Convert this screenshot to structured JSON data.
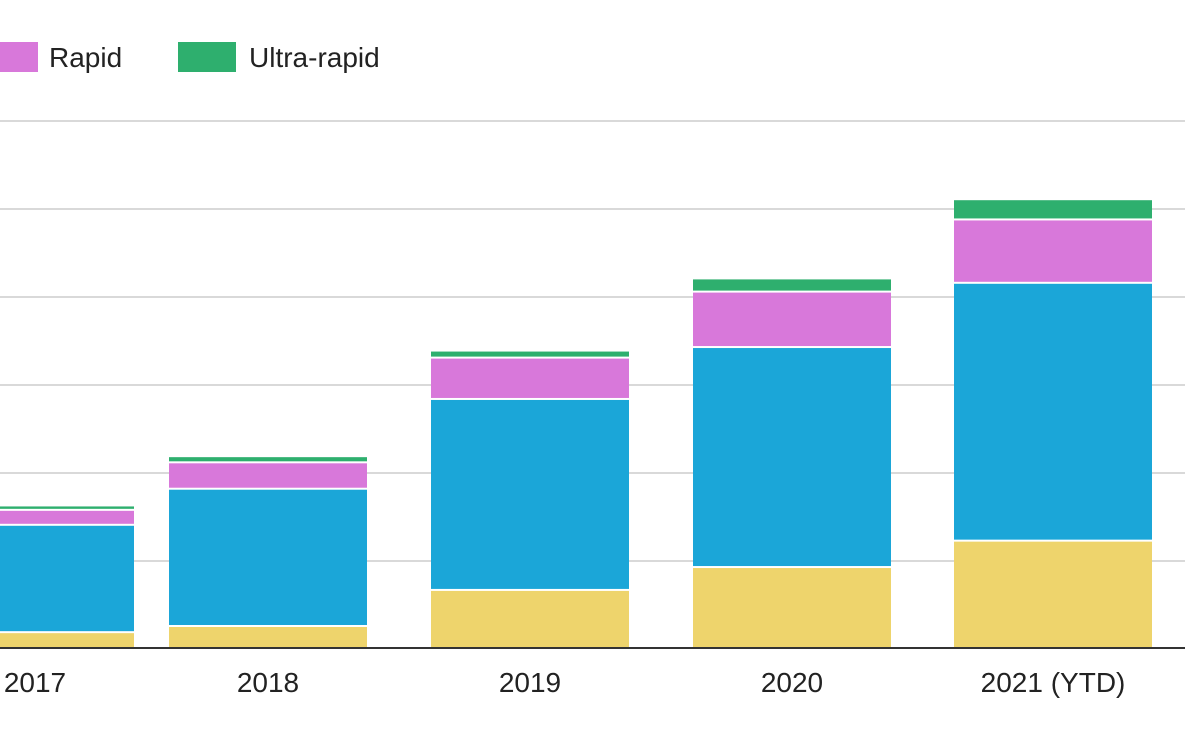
{
  "chart_data": {
    "type": "bar",
    "stacked": true,
    "categories": [
      "2017",
      "2018",
      "2019",
      "2020",
      "2021 (YTD)"
    ],
    "series": [
      {
        "key": "s1",
        "values": [
          0.18,
          0.25,
          0.66,
          0.92,
          1.22
        ]
      },
      {
        "key": "s2",
        "values": [
          1.22,
          1.56,
          2.17,
          2.5,
          2.93
        ]
      },
      {
        "key": "Rapid",
        "name": "Rapid",
        "values": [
          0.17,
          0.3,
          0.47,
          0.63,
          0.72
        ]
      },
      {
        "key": "Ultra-rapid",
        "name": "Ultra-rapid",
        "values": [
          0.05,
          0.07,
          0.08,
          0.15,
          0.23
        ]
      }
    ],
    "ylim": [
      0,
      6
    ],
    "grid": true,
    "legend_position": "top-left",
    "colors": {
      "s1": "#eed46c",
      "s2": "#1ba6d8",
      "Rapid": "#d878da",
      "Ultra-rapid": "#2eaf6e",
      "grid": "#d9d9d9",
      "axis": "#333333"
    }
  }
}
